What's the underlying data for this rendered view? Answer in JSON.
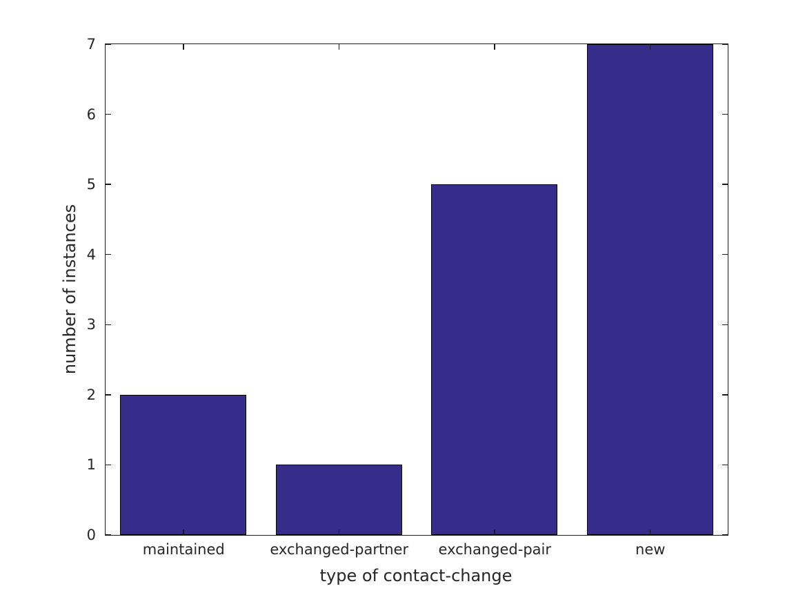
{
  "chart_data": {
    "type": "bar",
    "categories": [
      "maintained",
      "exchanged-partner",
      "exchanged-pair",
      "new"
    ],
    "values": [
      2,
      1,
      5,
      7
    ],
    "xlabel": "type of contact-change",
    "ylabel": "number of instances",
    "ylim": [
      0,
      7
    ],
    "yticks": [
      0,
      1,
      2,
      3,
      4,
      5,
      6,
      7
    ],
    "bar_width_fraction": 0.81,
    "grid": false,
    "tick_direction": "in",
    "spines": [
      "left",
      "right",
      "top",
      "bottom"
    ],
    "colors": {
      "bar_fill": "#362D8B",
      "bar_edge": "#000000",
      "axis": "#1a1a1a",
      "text": "#262626",
      "background": "#ffffff"
    }
  }
}
